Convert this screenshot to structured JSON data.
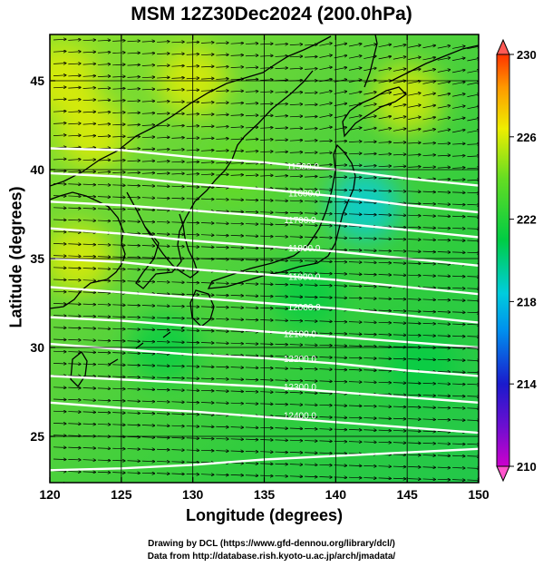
{
  "chart_data": {
    "type": "heatmap",
    "title": "MSM 12Z30Dec2024 (200.0hPa)",
    "xlabel": "Longitude (degrees)",
    "ylabel": "Latitude  (degrees)",
    "xlim": [
      120,
      150
    ],
    "ylim": [
      22.4,
      47.6
    ],
    "xticks": [
      120,
      125,
      130,
      135,
      140,
      145,
      150
    ],
    "yticks": [
      25,
      30,
      35,
      40,
      45
    ],
    "grid": true,
    "colorbar": {
      "range": [
        210,
        230
      ],
      "ticks": [
        210,
        214,
        218,
        222,
        226,
        230
      ],
      "colors": [
        "#cc00cc",
        "#1a1acc",
        "#00ccee",
        "#00cc44",
        "#eeee00",
        "#ff3300"
      ]
    },
    "contour_labels": [
      {
        "text": "11500.0",
        "lon": 137.7,
        "lat": 40.2
      },
      {
        "text": "11600.0",
        "lon": 137.8,
        "lat": 38.7
      },
      {
        "text": "11700.0",
        "lon": 137.5,
        "lat": 37.2
      },
      {
        "text": "11800.0",
        "lon": 137.8,
        "lat": 35.6
      },
      {
        "text": "11900.0",
        "lon": 137.8,
        "lat": 34.0
      },
      {
        "text": "12000.0",
        "lon": 137.8,
        "lat": 32.3
      },
      {
        "text": "12100.0",
        "lon": 137.5,
        "lat": 30.8
      },
      {
        "text": "12200.0",
        "lon": 137.5,
        "lat": 29.4
      },
      {
        "text": "12300.0",
        "lon": 137.5,
        "lat": 27.8
      },
      {
        "text": "12400.0",
        "lon": 137.5,
        "lat": 26.2
      }
    ],
    "contours": [
      {
        "value": 11500,
        "points": [
          [
            120,
            41.2
          ],
          [
            125,
            41.1
          ],
          [
            130,
            40.7
          ],
          [
            135,
            40.4
          ],
          [
            140,
            40.0
          ],
          [
            145,
            39.5
          ],
          [
            150,
            39.1
          ]
        ]
      },
      {
        "value": 11600,
        "points": [
          [
            120,
            39.8
          ],
          [
            125,
            39.6
          ],
          [
            130,
            39.2
          ],
          [
            135,
            38.9
          ],
          [
            140,
            38.5
          ],
          [
            145,
            38.0
          ],
          [
            150,
            37.6
          ]
        ]
      },
      {
        "value": 11700,
        "points": [
          [
            120,
            38.2
          ],
          [
            125,
            38.0
          ],
          [
            130,
            37.7
          ],
          [
            135,
            37.4
          ],
          [
            140,
            37.0
          ],
          [
            145,
            36.6
          ],
          [
            150,
            36.2
          ]
        ]
      },
      {
        "value": 11800,
        "points": [
          [
            120,
            36.7
          ],
          [
            125,
            36.4
          ],
          [
            130,
            36.0
          ],
          [
            135,
            35.7
          ],
          [
            140,
            35.4
          ],
          [
            145,
            35.0
          ],
          [
            150,
            34.6
          ]
        ]
      },
      {
        "value": 11900,
        "points": [
          [
            120,
            35.0
          ],
          [
            125,
            34.8
          ],
          [
            130,
            34.4
          ],
          [
            135,
            34.1
          ],
          [
            140,
            33.8
          ],
          [
            145,
            33.4
          ],
          [
            150,
            33.0
          ]
        ]
      },
      {
        "value": 12000,
        "points": [
          [
            120,
            33.4
          ],
          [
            125,
            33.1
          ],
          [
            130,
            32.8
          ],
          [
            135,
            32.5
          ],
          [
            140,
            32.2
          ],
          [
            145,
            31.8
          ],
          [
            150,
            31.4
          ]
        ]
      },
      {
        "value": 12100,
        "points": [
          [
            120,
            31.7
          ],
          [
            125,
            31.5
          ],
          [
            130,
            31.2
          ],
          [
            135,
            30.9
          ],
          [
            140,
            30.6
          ],
          [
            145,
            30.3
          ],
          [
            150,
            30.0
          ]
        ]
      },
      {
        "value": 12200,
        "points": [
          [
            120,
            30.2
          ],
          [
            125,
            29.9
          ],
          [
            130,
            29.6
          ],
          [
            135,
            29.4
          ],
          [
            140,
            29.1
          ],
          [
            145,
            28.7
          ],
          [
            150,
            28.4
          ]
        ]
      },
      {
        "value": 12300,
        "points": [
          [
            120,
            28.4
          ],
          [
            125,
            28.2
          ],
          [
            130,
            28.0
          ],
          [
            135,
            27.8
          ],
          [
            140,
            27.5
          ],
          [
            145,
            27.2
          ],
          [
            150,
            26.9
          ]
        ]
      },
      {
        "value": 12400,
        "points": [
          [
            120,
            26.9
          ],
          [
            125,
            26.6
          ],
          [
            130,
            26.4
          ],
          [
            135,
            26.1
          ],
          [
            140,
            25.8
          ],
          [
            145,
            25.5
          ],
          [
            150,
            25.2
          ]
        ]
      },
      {
        "value": 12500,
        "points": [
          [
            120,
            23.1
          ],
          [
            125,
            23.2
          ],
          [
            130,
            23.4
          ],
          [
            135,
            23.7
          ],
          [
            140,
            23.9
          ],
          [
            145,
            24.1
          ],
          [
            150,
            24.3
          ]
        ]
      }
    ],
    "field": [
      {
        "lon": 121,
        "lat": 45,
        "value": 226.5
      },
      {
        "lon": 123,
        "lat": 42,
        "value": 227.5
      },
      {
        "lon": 122,
        "lat": 35,
        "value": 227
      },
      {
        "lon": 130,
        "lat": 45,
        "value": 226.5
      },
      {
        "lon": 145,
        "lat": 44,
        "value": 227
      },
      {
        "lon": 142,
        "lat": 38,
        "value": 218.5
      },
      {
        "lon": 128,
        "lat": 30,
        "value": 223
      },
      {
        "lon": 133,
        "lat": 40,
        "value": 224
      },
      {
        "lon": 138,
        "lat": 33,
        "value": 222.5
      },
      {
        "lon": 146,
        "lat": 29,
        "value": 222
      }
    ]
  },
  "credits": {
    "line1": "Drawing by DCL (https://www.gfd-dennou.org/library/dcl/)",
    "line2": "Data from http://database.rish.kyoto-u.ac.jp/arch/jmadata/"
  }
}
